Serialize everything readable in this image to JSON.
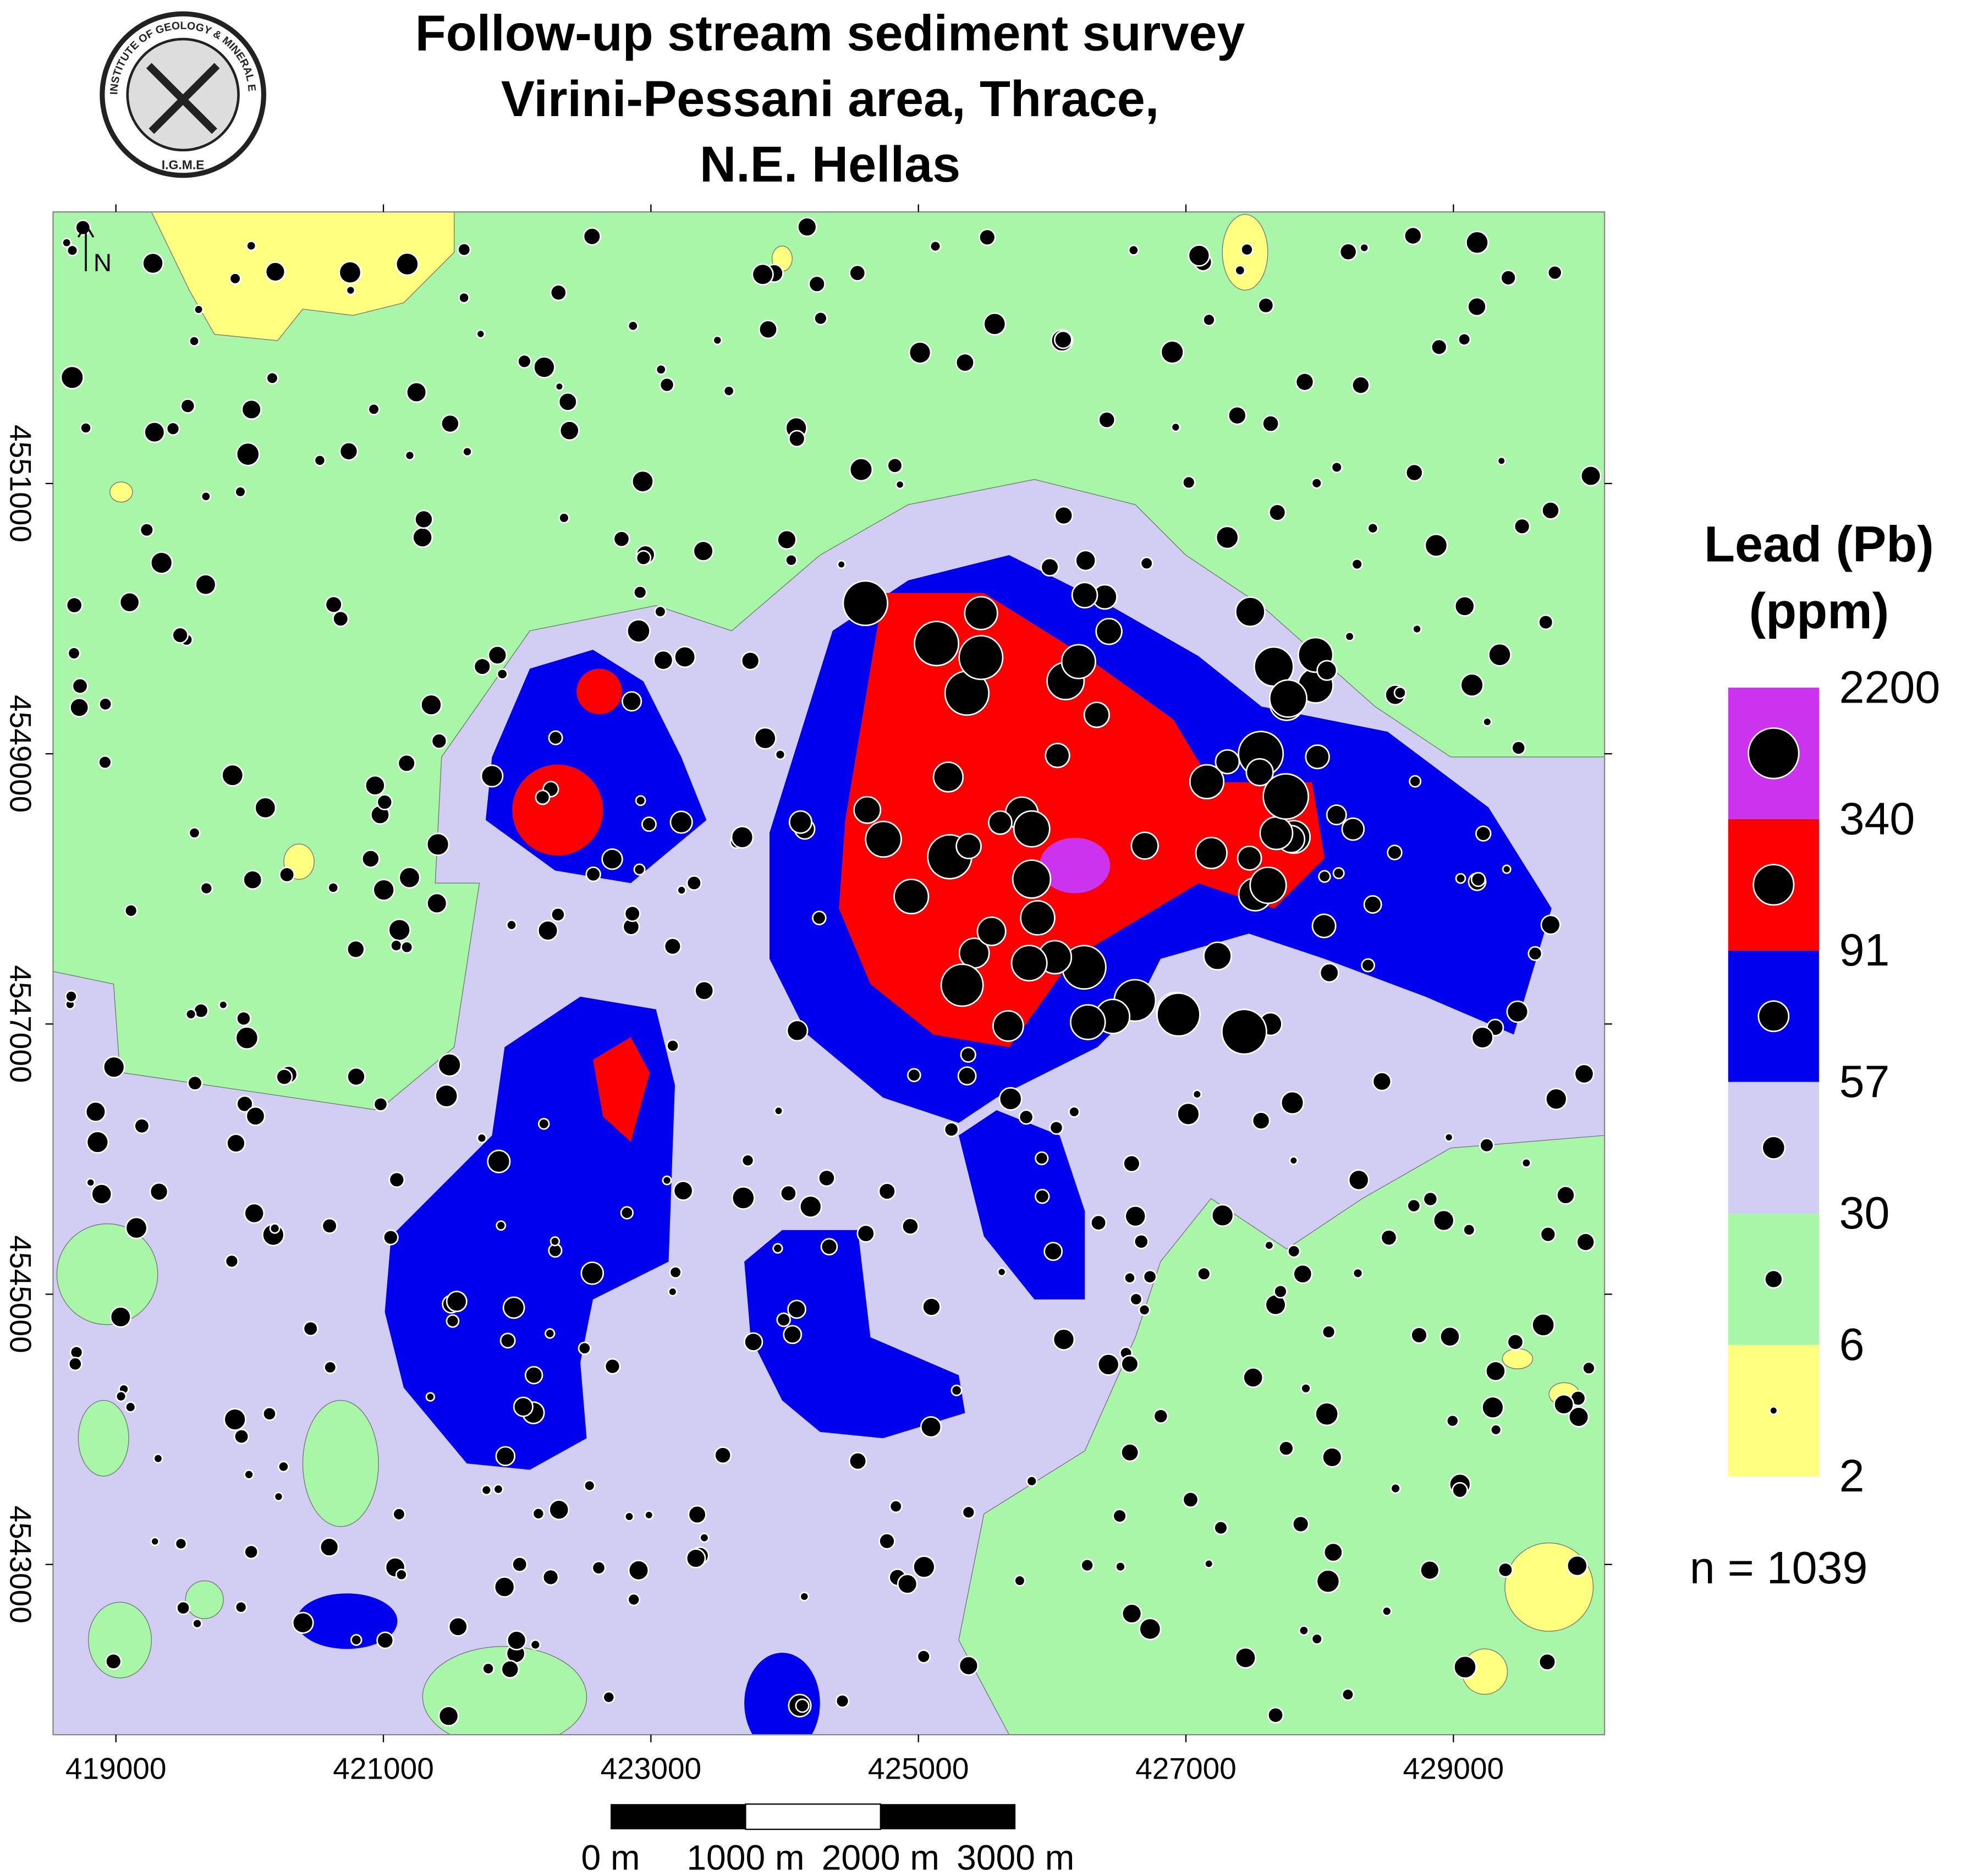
{
  "logo": {
    "ring_text": "INSTITUTE OF GEOLOGY & MINERAL EXPLORATION",
    "acronym": "I.G.M.E"
  },
  "title": [
    "Follow-up stream sediment survey",
    "Virini-Pessani area, Thrace,",
    "N.E. Hellas"
  ],
  "north_arrow": "N",
  "map": {
    "xlim": [
      418530,
      430130
    ],
    "ylim": [
      4541740,
      4553010
    ],
    "xticks": [
      419000,
      421000,
      423000,
      425000,
      427000,
      429000
    ],
    "yticks": [
      4543000,
      4545000,
      4547000,
      4549000,
      4551000
    ]
  },
  "legend": {
    "title": [
      "Lead (Pb)",
      "(ppm)"
    ],
    "breaks": [
      2200,
      340,
      91,
      57,
      30,
      6,
      2
    ],
    "colors": [
      "#cc33ee",
      "#ff0000",
      "#0000ee",
      "#d2cdf2",
      "#a8f7a8",
      "#ffff80"
    ],
    "sample_count": "n = 1039"
  },
  "scale_bar": {
    "labels": [
      "0 m",
      "1000 m",
      "2000 m",
      "3000 m"
    ]
  }
}
